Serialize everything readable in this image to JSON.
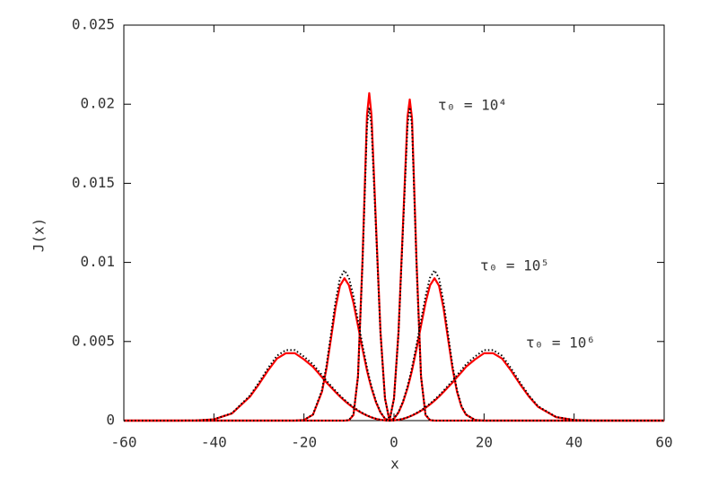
{
  "chart_data": {
    "type": "line",
    "xlabel": "x",
    "ylabel": "J(x)",
    "x": [
      -60,
      -56,
      -52,
      -48,
      -44,
      -40,
      -36,
      -32,
      -30,
      -28,
      -26,
      -24,
      -22,
      -20,
      -18,
      -16,
      -15,
      -14,
      -13,
      -12,
      -11,
      -10,
      -9,
      -8,
      -7,
      -6,
      -5.5,
      -5,
      -4,
      -3,
      -2,
      -1,
      0,
      1,
      2,
      3,
      3.5,
      4,
      5,
      6,
      7,
      8,
      9,
      10,
      11,
      12,
      13,
      14,
      15,
      16,
      18,
      20,
      22,
      24,
      26,
      28,
      30,
      32,
      36,
      40,
      44,
      48,
      52,
      56,
      60
    ],
    "series": [
      {
        "color": "#ff0000",
        "line_style": "solid",
        "values": [
          0,
          0,
          0,
          0,
          0,
          0,
          0,
          0,
          0,
          0,
          0,
          0,
          0,
          0,
          0,
          0,
          0,
          0,
          0,
          0,
          0,
          3e-05,
          0.00035,
          0.0028,
          0.0101,
          0.0193,
          0.0207,
          0.0193,
          0.0124,
          0.0056,
          0.0014,
          0,
          0.0014,
          0.0056,
          0.0124,
          0.0192,
          0.0203,
          0.0191,
          0.0101,
          0.0028,
          0.00035,
          3e-05,
          0,
          0,
          0,
          0,
          0,
          0,
          0,
          0,
          0,
          0,
          0,
          0,
          0,
          0,
          0,
          0,
          0,
          0,
          0,
          0,
          0,
          0,
          0
        ]
      },
      {
        "color": "#ff0000",
        "line_style": "solid",
        "values": [
          0,
          0,
          0,
          0,
          0,
          0,
          0,
          0,
          0,
          0,
          0,
          0,
          0,
          4e-05,
          0.00037,
          0.00182,
          0.00329,
          0.00518,
          0.00711,
          0.00852,
          0.009,
          0.00855,
          0.00744,
          0.006,
          0.00453,
          0.00317,
          0.00259,
          0.00205,
          0.00116,
          0.00051,
          0.00012,
          0,
          0.00012,
          0.00051,
          0.00116,
          0.00205,
          0.00259,
          0.00317,
          0.00453,
          0.006,
          0.00744,
          0.00855,
          0.009,
          0.00852,
          0.00711,
          0.00518,
          0.00329,
          0.00182,
          0.00087,
          0.00037,
          4e-05,
          0,
          0,
          0,
          0,
          0,
          0,
          0,
          0,
          0,
          0,
          0,
          0,
          0,
          0
        ]
      },
      {
        "color": "#ff0000",
        "line_style": "solid",
        "values": [
          0,
          0,
          0,
          0,
          1e-05,
          8e-05,
          0.00045,
          0.00151,
          0.0023,
          0.00316,
          0.00392,
          0.00426,
          0.00426,
          0.00387,
          0.0034,
          0.00275,
          0.00241,
          0.00211,
          0.00181,
          0.00152,
          0.00126,
          0.00102,
          0.00081,
          0.00062,
          0.00046,
          0.00032,
          0.00026,
          0.0002,
          0.00011,
          5e-05,
          1e-05,
          0,
          1e-05,
          5e-05,
          0.00011,
          0.0002,
          0.00026,
          0.00032,
          0.00046,
          0.00062,
          0.00081,
          0.00102,
          0.00126,
          0.00152,
          0.00181,
          0.00211,
          0.00241,
          0.00275,
          0.00306,
          0.0034,
          0.00387,
          0.00426,
          0.00426,
          0.00392,
          0.00316,
          0.0023,
          0.00151,
          0.00087,
          0.00022,
          4e-05,
          0,
          0,
          0,
          0,
          0
        ]
      },
      {
        "color": "#000000",
        "line_style": "dotted",
        "values": [
          0,
          0,
          0,
          0,
          0,
          0,
          0,
          0,
          0,
          0,
          0,
          0,
          0,
          0,
          0,
          0,
          0,
          0,
          0,
          0,
          0,
          3e-05,
          0.0004,
          0.00277,
          0.0099,
          0.01861,
          0.0198,
          0.01861,
          0.0121,
          0.00552,
          0.00139,
          0,
          0.00139,
          0.00552,
          0.0121,
          0.01861,
          0.0198,
          0.01861,
          0.0099,
          0.00277,
          0.0004,
          3e-05,
          0,
          0,
          0,
          0,
          0,
          0,
          0,
          0,
          0,
          0,
          0,
          0,
          0,
          0,
          0,
          0,
          0,
          0,
          0,
          0,
          0,
          0,
          0
        ]
      },
      {
        "color": "#000000",
        "line_style": "dotted",
        "values": [
          0,
          0,
          0,
          0,
          0,
          0,
          0,
          0,
          0,
          0,
          0,
          0,
          0,
          4e-05,
          0.00039,
          0.00192,
          0.00347,
          0.00547,
          0.00751,
          0.00899,
          0.0095,
          0.00903,
          0.00785,
          0.00633,
          0.00478,
          0.00335,
          0.00273,
          0.00216,
          0.00122,
          0.00054,
          0.00013,
          0,
          0.00013,
          0.00054,
          0.00122,
          0.00216,
          0.00273,
          0.00335,
          0.00478,
          0.00633,
          0.00785,
          0.00903,
          0.0095,
          0.00899,
          0.00751,
          0.00547,
          0.00347,
          0.00192,
          0.00092,
          0.00039,
          4e-05,
          0,
          0,
          0,
          0,
          0,
          0,
          0,
          0,
          0,
          0,
          0,
          0,
          0,
          0
        ]
      },
      {
        "color": "#000000",
        "line_style": "dotted",
        "values": [
          0,
          0,
          0,
          0,
          1e-05,
          8e-05,
          0.00047,
          0.00158,
          0.00241,
          0.00331,
          0.0041,
          0.00446,
          0.00446,
          0.00405,
          0.00356,
          0.00288,
          0.00252,
          0.00221,
          0.00189,
          0.00159,
          0.00132,
          0.00107,
          0.00085,
          0.00065,
          0.00048,
          0.00033,
          0.00027,
          0.00021,
          0.00012,
          5e-05,
          1e-05,
          0,
          1e-05,
          5e-05,
          0.00012,
          0.00021,
          0.00027,
          0.00033,
          0.00048,
          0.00065,
          0.00085,
          0.00107,
          0.00132,
          0.00159,
          0.00189,
          0.00221,
          0.00252,
          0.00288,
          0.0032,
          0.00356,
          0.00405,
          0.00446,
          0.00446,
          0.0041,
          0.00331,
          0.00241,
          0.00158,
          0.00091,
          0.00023,
          4e-05,
          0,
          0,
          0,
          0,
          0
        ]
      }
    ],
    "annotations": [
      "τ₀ = 10⁴",
      "τ₀ = 10⁵",
      "τ₀ = 10⁶"
    ],
    "xlim": [
      -60,
      60
    ],
    "xticks": [
      -60,
      -40,
      -20,
      0,
      20,
      40,
      60
    ],
    "ylim": [
      0,
      0.025
    ],
    "yticks": [
      0,
      0.005,
      0.01,
      0.015,
      0.02,
      0.025
    ],
    "grid": false
  }
}
